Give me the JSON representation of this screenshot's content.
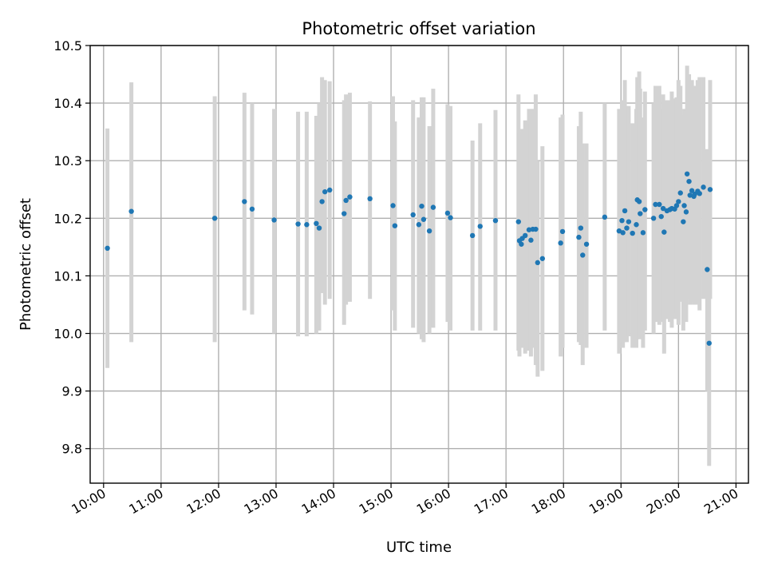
{
  "chart_data": {
    "type": "scatter",
    "title": "Photometric offset variation",
    "xlabel": "UTC time",
    "ylabel": "Photometric offset",
    "grid": true,
    "xlim": [
      "09:46",
      "21:13"
    ],
    "ylim": [
      9.74,
      10.5
    ],
    "x_ticks": [
      "10:00",
      "11:00",
      "12:00",
      "13:00",
      "14:00",
      "15:00",
      "16:00",
      "17:00",
      "18:00",
      "19:00",
      "20:00",
      "21:00"
    ],
    "y_ticks": [
      "9.8",
      "9.9",
      "10.0",
      "10.1",
      "10.2",
      "10.3",
      "10.4",
      "10.5"
    ],
    "marker_color": "#1f77b4",
    "errorbar_color": "#d3d3d3",
    "series": [
      {
        "x": [
          "10:04",
          "10:29",
          "11:56",
          "12:27",
          "12:35",
          "12:58",
          "13:23",
          "13:32",
          "13:42",
          "13:45",
          "13:48",
          "13:51",
          "13:56",
          "14:11",
          "14:13",
          "14:17",
          "14:38",
          "15:02",
          "15:04",
          "15:23",
          "15:29",
          "15:32",
          "15:34",
          "15:40",
          "15:44",
          "15:59",
          "16:02",
          "16:25",
          "16:33",
          "16:49",
          "17:13",
          "17:14",
          "17:16",
          "17:17",
          "17:20",
          "17:24",
          "17:26",
          "17:28",
          "17:31",
          "17:33",
          "17:38",
          "17:57",
          "17:59",
          "18:16",
          "18:18",
          "18:20",
          "18:24",
          "18:43",
          "18:58",
          "19:01",
          "19:02",
          "19:04",
          "19:06",
          "19:08",
          "19:12",
          "19:16",
          "19:17",
          "19:19",
          "19:20",
          "19:23",
          "19:25",
          "19:34",
          "19:36",
          "19:40",
          "19:42",
          "19:44",
          "19:45",
          "19:48",
          "19:51",
          "19:53",
          "19:56",
          "19:58",
          "20:00",
          "20:02",
          "20:05",
          "20:06",
          "20:08",
          "20:09",
          "20:11",
          "20:12",
          "20:14",
          "20:16",
          "20:17",
          "20:20",
          "20:22",
          "20:26",
          "20:30",
          "20:32",
          "20:33"
        ],
        "y": [
          10.148,
          10.212,
          10.2,
          10.229,
          10.216,
          10.197,
          10.19,
          10.189,
          10.191,
          10.183,
          10.229,
          10.246,
          10.249,
          10.208,
          10.231,
          10.237,
          10.234,
          10.222,
          10.187,
          10.206,
          10.189,
          10.221,
          10.198,
          10.178,
          10.219,
          10.209,
          10.201,
          10.17,
          10.186,
          10.196,
          10.194,
          10.161,
          10.155,
          10.165,
          10.17,
          10.18,
          10.162,
          10.181,
          10.181,
          10.123,
          10.13,
          10.157,
          10.177,
          10.167,
          10.183,
          10.136,
          10.155,
          10.202,
          10.178,
          10.196,
          10.175,
          10.213,
          10.183,
          10.194,
          10.174,
          10.189,
          10.232,
          10.229,
          10.208,
          10.175,
          10.215,
          10.2,
          10.224,
          10.224,
          10.203,
          10.217,
          10.176,
          10.213,
          10.215,
          10.217,
          10.216,
          10.222,
          10.229,
          10.244,
          10.194,
          10.222,
          10.211,
          10.277,
          10.264,
          10.24,
          10.248,
          10.238,
          10.242,
          10.247,
          10.243,
          10.254,
          10.111,
          9.983,
          10.25
        ],
        "err_low": [
          9.94,
          9.985,
          9.985,
          10.04,
          10.033,
          10.0,
          9.995,
          9.995,
          10.0,
          10.005,
          10.07,
          10.05,
          10.06,
          10.015,
          10.05,
          10.055,
          10.06,
          10.04,
          10.005,
          10.01,
          10.0,
          9.99,
          9.985,
          10.0,
          10.01,
          10.02,
          10.005,
          10.005,
          10.005,
          10.005,
          9.97,
          9.96,
          9.975,
          9.975,
          9.965,
          9.97,
          9.96,
          9.975,
          9.945,
          9.925,
          9.935,
          9.96,
          9.975,
          9.985,
          9.98,
          9.945,
          9.975,
          10.005,
          9.965,
          9.985,
          9.975,
          9.985,
          9.985,
          9.995,
          9.975,
          9.975,
          9.99,
          10.005,
          9.99,
          9.975,
          10.005,
          10.0,
          10.02,
          10.015,
          10.025,
          10.02,
          9.965,
          10.025,
          10.02,
          10.01,
          10.025,
          10.035,
          10.015,
          10.055,
          10.005,
          10.05,
          10.02,
          10.08,
          10.06,
          10.05,
          10.055,
          10.05,
          10.05,
          10.05,
          10.04,
          10.06,
          9.9,
          9.77,
          10.06
        ],
        "err_high": [
          10.356,
          10.436,
          10.412,
          10.418,
          10.4,
          10.39,
          10.385,
          10.385,
          10.378,
          10.4,
          10.445,
          10.44,
          10.438,
          10.405,
          10.415,
          10.418,
          10.403,
          10.412,
          10.368,
          10.405,
          10.375,
          10.41,
          10.41,
          10.36,
          10.425,
          10.398,
          10.395,
          10.335,
          10.365,
          10.388,
          10.415,
          10.35,
          10.335,
          10.355,
          10.37,
          10.39,
          10.365,
          10.39,
          10.415,
          10.3,
          10.325,
          10.375,
          10.38,
          10.36,
          10.385,
          10.33,
          10.33,
          10.4,
          10.39,
          10.405,
          10.37,
          10.44,
          10.38,
          10.395,
          10.365,
          10.39,
          10.445,
          10.455,
          10.425,
          10.375,
          10.42,
          10.4,
          10.43,
          10.43,
          10.39,
          10.415,
          10.38,
          10.405,
          10.405,
          10.42,
          10.408,
          10.41,
          10.44,
          10.43,
          10.38,
          10.39,
          10.37,
          10.465,
          10.45,
          10.43,
          10.44,
          10.43,
          10.43,
          10.44,
          10.445,
          10.445,
          10.32,
          10.2,
          10.44
        ]
      }
    ]
  }
}
